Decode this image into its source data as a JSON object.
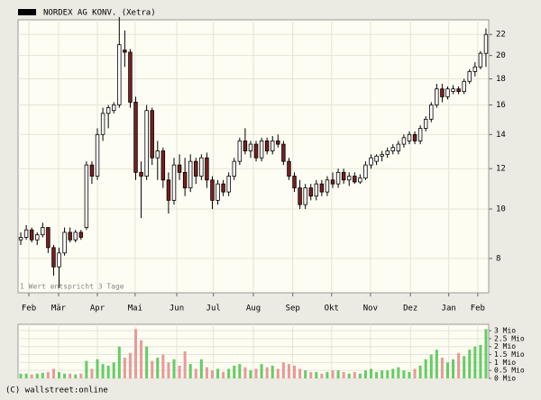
{
  "chart_data": {
    "type": "candlestick",
    "title": "NORDEX AG KONV. (Xetra)",
    "note": "1 Wert entspricht 3 Tage",
    "source": "(C) wallstreet:online",
    "legend_color": "#000000",
    "up_color": "#ffffff",
    "down_color": "#7a1f1f",
    "log_scale": true,
    "grid": true,
    "ylim": [
      6.85,
      23.5
    ],
    "yticks": [
      8,
      10,
      12,
      14,
      16,
      18,
      20,
      22
    ],
    "xlim": [
      0,
      86
    ],
    "xticks": [
      {
        "value": 1.98,
        "label": "Feb"
      },
      {
        "value": 7.41,
        "label": "Mär"
      },
      {
        "value": 14.5,
        "label": "Apr"
      },
      {
        "value": 21.4,
        "label": "Mai"
      },
      {
        "value": 29.0,
        "label": "Jun"
      },
      {
        "value": 35.7,
        "label": "Jul"
      },
      {
        "value": 43.0,
        "label": "Aug"
      },
      {
        "value": 50.2,
        "label": "Sep"
      },
      {
        "value": 57.3,
        "label": "Okt"
      },
      {
        "value": 64.4,
        "label": "Nov"
      },
      {
        "value": 71.7,
        "label": "Dez"
      },
      {
        "value": 78.7,
        "label": "Jan"
      },
      {
        "value": 84.0,
        "label": "Feb"
      }
    ],
    "candles": [
      [
        8.7,
        9.0,
        8.5,
        8.8
      ],
      [
        8.8,
        9.3,
        8.7,
        9.1
      ],
      [
        9.1,
        9.2,
        8.6,
        8.7
      ],
      [
        8.7,
        9.0,
        8.5,
        8.9
      ],
      [
        8.9,
        9.4,
        8.8,
        9.2
      ],
      [
        9.2,
        9.2,
        8.2,
        8.4
      ],
      [
        8.4,
        8.5,
        7.4,
        7.7
      ],
      [
        7.7,
        8.4,
        7.0,
        8.2
      ],
      [
        8.2,
        9.2,
        8.1,
        9.0
      ],
      [
        9.0,
        9.2,
        8.6,
        8.7
      ],
      [
        8.7,
        9.1,
        8.6,
        9.0
      ],
      [
        9.0,
        9.1,
        8.7,
        8.8
      ],
      [
        9.2,
        12.4,
        9.1,
        12.2
      ],
      [
        12.2,
        12.4,
        11.2,
        11.6
      ],
      [
        11.6,
        14.4,
        11.4,
        14.0
      ],
      [
        14.0,
        15.8,
        13.6,
        15.4
      ],
      [
        15.4,
        16.0,
        14.4,
        15.8
      ],
      [
        15.6,
        16.2,
        15.4,
        16.0
      ],
      [
        16.0,
        23.8,
        15.8,
        21.0
      ],
      [
        20.5,
        22.4,
        19.0,
        20.3
      ],
      [
        20.3,
        20.6,
        15.8,
        16.2
      ],
      [
        16.2,
        16.6,
        11.4,
        11.8
      ],
      [
        11.8,
        12.4,
        9.6,
        11.6
      ],
      [
        11.6,
        16.0,
        11.4,
        15.6
      ],
      [
        15.6,
        15.8,
        12.2,
        12.6
      ],
      [
        12.6,
        13.6,
        11.4,
        13.0
      ],
      [
        13.0,
        13.2,
        11.0,
        11.4
      ],
      [
        11.4,
        11.8,
        9.8,
        10.4
      ],
      [
        10.4,
        12.6,
        10.2,
        12.2
      ],
      [
        12.2,
        12.8,
        11.4,
        11.8
      ],
      [
        11.8,
        12.6,
        10.6,
        11.0
      ],
      [
        11.0,
        12.8,
        10.8,
        12.4
      ],
      [
        12.4,
        12.6,
        11.2,
        11.6
      ],
      [
        11.6,
        12.8,
        11.4,
        12.6
      ],
      [
        12.6,
        12.9,
        11.0,
        11.4
      ],
      [
        11.4,
        11.6,
        10.0,
        10.4
      ],
      [
        10.4,
        11.4,
        10.2,
        11.2
      ],
      [
        11.2,
        11.4,
        10.6,
        10.8
      ],
      [
        10.8,
        11.8,
        10.6,
        11.6
      ],
      [
        11.6,
        12.6,
        11.4,
        12.4
      ],
      [
        12.4,
        13.8,
        12.2,
        13.6
      ],
      [
        13.6,
        14.4,
        12.8,
        13.0
      ],
      [
        13.0,
        13.6,
        12.6,
        13.4
      ],
      [
        13.4,
        13.6,
        12.4,
        12.6
      ],
      [
        12.6,
        13.8,
        12.4,
        13.6
      ],
      [
        13.6,
        13.8,
        12.8,
        13.0
      ],
      [
        13.0,
        13.9,
        12.8,
        13.6
      ],
      [
        13.6,
        14.0,
        13.2,
        13.4
      ],
      [
        13.4,
        13.6,
        12.2,
        12.4
      ],
      [
        12.4,
        12.6,
        11.4,
        11.6
      ],
      [
        11.6,
        11.8,
        10.8,
        11.0
      ],
      [
        11.0,
        11.4,
        10.0,
        10.2
      ],
      [
        10.2,
        11.2,
        10.0,
        11.0
      ],
      [
        11.0,
        11.2,
        10.4,
        10.6
      ],
      [
        10.6,
        11.4,
        10.4,
        11.2
      ],
      [
        11.2,
        11.4,
        10.6,
        10.8
      ],
      [
        10.8,
        11.6,
        10.6,
        11.4
      ],
      [
        11.4,
        11.8,
        11.0,
        11.2
      ],
      [
        11.2,
        12.0,
        11.0,
        11.8
      ],
      [
        11.8,
        12.0,
        11.2,
        11.4
      ],
      [
        11.4,
        11.8,
        11.1,
        11.6
      ],
      [
        11.6,
        11.8,
        11.2,
        11.3
      ],
      [
        11.3,
        11.7,
        11.2,
        11.5
      ],
      [
        11.5,
        12.4,
        11.4,
        12.2
      ],
      [
        12.2,
        12.8,
        12.0,
        12.6
      ],
      [
        12.4,
        12.8,
        12.2,
        12.7
      ],
      [
        12.7,
        13.0,
        12.4,
        12.8
      ],
      [
        12.8,
        13.2,
        12.6,
        13.0
      ],
      [
        13.0,
        13.4,
        12.8,
        13.2
      ],
      [
        13.0,
        13.6,
        12.8,
        13.4
      ],
      [
        13.4,
        14.0,
        13.2,
        13.8
      ],
      [
        13.6,
        14.2,
        13.4,
        14.0
      ],
      [
        14.0,
        14.2,
        13.4,
        13.6
      ],
      [
        13.6,
        14.6,
        13.4,
        14.4
      ],
      [
        14.4,
        15.2,
        14.2,
        15.0
      ],
      [
        15.0,
        16.2,
        14.8,
        16.0
      ],
      [
        16.0,
        17.6,
        15.8,
        17.2
      ],
      [
        17.2,
        17.6,
        16.2,
        16.6
      ],
      [
        16.6,
        17.4,
        16.4,
        17.2
      ],
      [
        17.0,
        17.5,
        16.8,
        17.2
      ],
      [
        17.2,
        17.4,
        16.8,
        17.0
      ],
      [
        17.0,
        18.0,
        16.8,
        17.8
      ],
      [
        17.8,
        18.8,
        17.6,
        18.6
      ],
      [
        18.6,
        19.4,
        18.2,
        19.0
      ],
      [
        19.0,
        20.4,
        18.8,
        20.2
      ],
      [
        20.2,
        22.6,
        19.0,
        22.0
      ]
    ],
    "volume": {
      "up_color": "#66cc66",
      "down_color": "#e89a9a",
      "ylim": [
        0,
        3.4
      ],
      "yticks": [
        {
          "value": 0,
          "label": "0 Mio"
        },
        {
          "value": 0.5,
          "label": "0.5 Mio"
        },
        {
          "value": 1,
          "label": "1 Mio"
        },
        {
          "value": 1.5,
          "label": "1.5 Mio"
        },
        {
          "value": 2,
          "label": "2 Mio"
        },
        {
          "value": 2.5,
          "label": "2.5 Mio"
        },
        {
          "value": 3,
          "label": "3 Mio"
        }
      ],
      "values": [
        0.3,
        0.3,
        0.25,
        0.3,
        0.35,
        0.4,
        0.6,
        0.4,
        0.3,
        0.3,
        0.25,
        0.3,
        1.1,
        0.6,
        1.2,
        0.9,
        0.8,
        1.0,
        2.0,
        1.3,
        1.6,
        3.1,
        2.4,
        2.0,
        1.1,
        1.3,
        1.5,
        1.0,
        1.2,
        0.8,
        1.7,
        0.9,
        0.6,
        1.2,
        0.7,
        0.5,
        0.6,
        0.4,
        0.6,
        0.8,
        0.9,
        0.7,
        0.5,
        0.6,
        0.9,
        0.7,
        0.8,
        0.6,
        1.0,
        0.9,
        0.8,
        0.6,
        0.5,
        0.4,
        0.4,
        0.3,
        0.4,
        0.5,
        0.5,
        0.4,
        0.3,
        0.4,
        0.3,
        0.5,
        0.6,
        0.4,
        0.5,
        0.5,
        0.6,
        0.7,
        0.5,
        0.4,
        0.6,
        0.8,
        1.2,
        1.5,
        1.8,
        1.3,
        1.0,
        1.2,
        1.6,
        1.4,
        1.8,
        2.0,
        2.1,
        3.1
      ]
    }
  }
}
